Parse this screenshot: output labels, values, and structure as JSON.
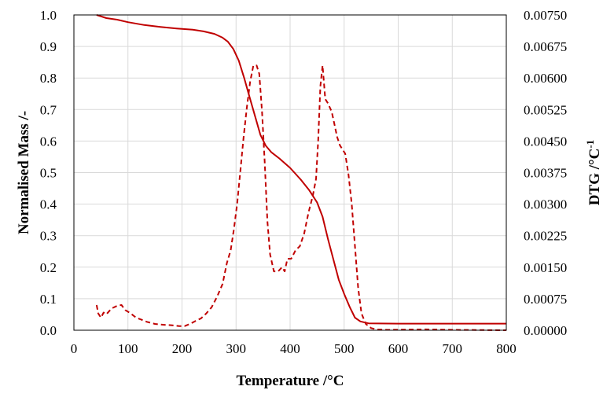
{
  "chart_data": {
    "type": "line",
    "xlabel": "Temperature /°C",
    "ylabel": "Normalised Mass /-",
    "y2label_main": "DTG  /°C",
    "y2label_sup": "-1",
    "xlim": [
      0,
      800
    ],
    "ylim": [
      0,
      1.0
    ],
    "y2lim": [
      0,
      0.0075
    ],
    "xticks": [
      0,
      100,
      200,
      300,
      400,
      500,
      600,
      700,
      800
    ],
    "xtick_labels": [
      "0",
      "100",
      "200",
      "300",
      "400",
      "500",
      "600",
      "700",
      "800"
    ],
    "yticks": [
      0,
      0.1,
      0.2,
      0.3,
      0.4,
      0.5,
      0.6,
      0.7,
      0.8,
      0.9,
      1.0
    ],
    "ytick_labels": [
      "0.0",
      "0.1",
      "0.2",
      "0.3",
      "0.4",
      "0.5",
      "0.6",
      "0.7",
      "0.8",
      "0.9",
      "1.0"
    ],
    "y2ticks": [
      0,
      0.00075,
      0.0015,
      0.00225,
      0.003,
      0.00375,
      0.0045,
      0.00525,
      0.006,
      0.00675,
      0.0075
    ],
    "y2tick_labels": [
      "0.00000",
      "0.00075",
      "0.00150",
      "0.00225",
      "0.00300",
      "0.00375",
      "0.00450",
      "0.00525",
      "0.00600",
      "0.00675",
      "0.00750"
    ],
    "grid": true,
    "color": "#c00000",
    "series": [
      {
        "style": "solid",
        "axis": "left",
        "points": [
          [
            42,
            1.0
          ],
          [
            60,
            0.99
          ],
          [
            80,
            0.985
          ],
          [
            100,
            0.977
          ],
          [
            130,
            0.968
          ],
          [
            160,
            0.962
          ],
          [
            190,
            0.957
          ],
          [
            220,
            0.953
          ],
          [
            240,
            0.948
          ],
          [
            260,
            0.94
          ],
          [
            275,
            0.928
          ],
          [
            285,
            0.915
          ],
          [
            295,
            0.892
          ],
          [
            305,
            0.855
          ],
          [
            315,
            0.8
          ],
          [
            325,
            0.74
          ],
          [
            335,
            0.68
          ],
          [
            345,
            0.62
          ],
          [
            355,
            0.585
          ],
          [
            365,
            0.565
          ],
          [
            380,
            0.545
          ],
          [
            400,
            0.515
          ],
          [
            420,
            0.477
          ],
          [
            435,
            0.445
          ],
          [
            450,
            0.405
          ],
          [
            460,
            0.36
          ],
          [
            470,
            0.29
          ],
          [
            480,
            0.225
          ],
          [
            490,
            0.16
          ],
          [
            500,
            0.115
          ],
          [
            510,
            0.075
          ],
          [
            520,
            0.04
          ],
          [
            530,
            0.028
          ],
          [
            545,
            0.022
          ],
          [
            600,
            0.021
          ],
          [
            700,
            0.021
          ],
          [
            800,
            0.021
          ]
        ]
      },
      {
        "style": "dashed",
        "axis": "right",
        "points": [
          [
            42,
            0.0006
          ],
          [
            45,
            0.0004
          ],
          [
            50,
            0.0003
          ],
          [
            55,
            0.00042
          ],
          [
            60,
            0.00038
          ],
          [
            65,
            0.00045
          ],
          [
            70,
            0.00052
          ],
          [
            80,
            0.00058
          ],
          [
            88,
            0.0006
          ],
          [
            95,
            0.00048
          ],
          [
            105,
            0.0004
          ],
          [
            115,
            0.0003
          ],
          [
            125,
            0.00025
          ],
          [
            135,
            0.0002
          ],
          [
            150,
            0.00015
          ],
          [
            165,
            0.00013
          ],
          [
            180,
            0.00012
          ],
          [
            195,
            0.0001
          ],
          [
            205,
            0.0001
          ],
          [
            215,
            0.00015
          ],
          [
            225,
            0.00022
          ],
          [
            235,
            0.00028
          ],
          [
            245,
            0.0004
          ],
          [
            255,
            0.00055
          ],
          [
            265,
            0.0008
          ],
          [
            275,
            0.0011
          ],
          [
            283,
            0.0016
          ],
          [
            290,
            0.0019
          ],
          [
            296,
            0.0024
          ],
          [
            302,
            0.003
          ],
          [
            308,
            0.0038
          ],
          [
            314,
            0.0046
          ],
          [
            320,
            0.0053
          ],
          [
            326,
            0.0059
          ],
          [
            332,
            0.0063
          ],
          [
            338,
            0.0063
          ],
          [
            343,
            0.0061
          ],
          [
            348,
            0.0052
          ],
          [
            353,
            0.004
          ],
          [
            358,
            0.0026
          ],
          [
            363,
            0.0018
          ],
          [
            370,
            0.0014
          ],
          [
            378,
            0.0014
          ],
          [
            385,
            0.0015
          ],
          [
            390,
            0.0014
          ],
          [
            395,
            0.0017
          ],
          [
            402,
            0.0017
          ],
          [
            410,
            0.0019
          ],
          [
            418,
            0.002
          ],
          [
            426,
            0.0023
          ],
          [
            434,
            0.0028
          ],
          [
            442,
            0.0032
          ],
          [
            448,
            0.0036
          ],
          [
            452,
            0.0045
          ],
          [
            456,
            0.0058
          ],
          [
            460,
            0.0063
          ],
          [
            465,
            0.0055
          ],
          [
            470,
            0.0054
          ],
          [
            477,
            0.0052
          ],
          [
            482,
            0.0049
          ],
          [
            487,
            0.0046
          ],
          [
            492,
            0.0044
          ],
          [
            497,
            0.0043
          ],
          [
            502,
            0.0042
          ],
          [
            508,
            0.0037
          ],
          [
            514,
            0.003
          ],
          [
            520,
            0.002
          ],
          [
            526,
            0.001
          ],
          [
            532,
            0.0004
          ],
          [
            540,
            0.00015
          ],
          [
            550,
            5e-05
          ],
          [
            560,
            2e-05
          ],
          [
            580,
            1e-05
          ],
          [
            650,
            2e-05
          ],
          [
            700,
            1e-05
          ],
          [
            800,
            0.0
          ]
        ]
      }
    ]
  }
}
